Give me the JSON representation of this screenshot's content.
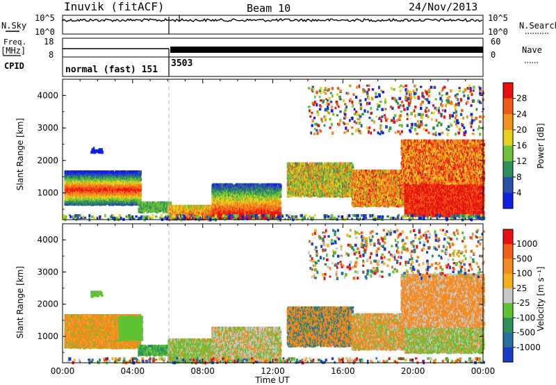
{
  "header": {
    "station": "Inuvik (fitACF)",
    "beam": "Beam 10",
    "date": "24/Nov/2013"
  },
  "top_panels": {
    "nsky_label": "N.Sky",
    "nsky_ticks": [
      "10^5",
      "10^0"
    ],
    "nsearch_label": "N.Search",
    "nsearch_ticks": [
      "10^5",
      "10^0"
    ],
    "freq_label": "Freq.",
    "freq_unit": "[MHz]",
    "freq_ticks": [
      "18",
      "8"
    ],
    "nave_label": "Nave",
    "nave_ticks": [
      "60",
      "0"
    ],
    "cpid_label": "CPID",
    "cpid_mode": "normal (fast) 151",
    "cpid_code": "3503"
  },
  "chart_data": [
    {
      "type": "heatmap",
      "name": "power",
      "ylabel": "Slant Range [km]",
      "yticks": [
        "1000",
        "2000",
        "3000",
        "4000"
      ],
      "ylim": [
        180,
        4500
      ],
      "colorbar_label": "Power [dB]",
      "colorbar_ticks": [
        "4",
        "8",
        "12",
        "16",
        "20",
        "24",
        "28"
      ],
      "colors": [
        "#1020e0",
        "#2a4fa8",
        "#2e8f5a",
        "#6ec23a",
        "#e6d020",
        "#f29020",
        "#f05a18",
        "#e81010"
      ]
    },
    {
      "type": "heatmap",
      "name": "velocity",
      "ylabel": "Slant Range [km]",
      "yticks": [
        "1000",
        "2000",
        "3000",
        "4000"
      ],
      "ylim": [
        180,
        4500
      ],
      "colorbar_label": "Velocity [m s⁻¹]",
      "colorbar_ticks": [
        "1000",
        "500",
        "100",
        "25",
        "-25",
        "-100",
        "-500",
        "-1000"
      ],
      "colors": [
        "#1a3cc8",
        "#2a6fa0",
        "#2e8f5a",
        "#5ec232",
        "#c8c8c8",
        "#f5b020",
        "#f58a20",
        "#f06018",
        "#e81010"
      ]
    }
  ],
  "xaxis": {
    "ticks": [
      "00:00",
      "04:00",
      "08:00",
      "12:00",
      "16:00",
      "20:00",
      "00:00"
    ],
    "label": "Time UT"
  }
}
